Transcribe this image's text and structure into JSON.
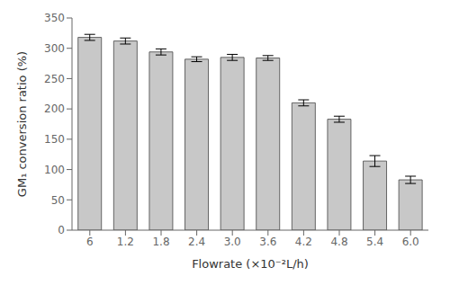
{
  "chart_data": {
    "type": "bar",
    "categories": [
      "6",
      "1.2",
      "1.8",
      "2.4",
      "3.0",
      "3.6",
      "4.2",
      "4.8",
      "5.4",
      "6.0"
    ],
    "values": [
      318,
      312,
      294,
      282,
      285,
      284,
      210,
      183,
      114,
      83
    ],
    "errors": [
      5,
      5,
      5,
      4,
      5,
      4,
      5,
      5,
      9,
      6
    ],
    "color": "#c8c8c8",
    "xlabel": "Flowrate (×10⁻²L/h)",
    "ylabel": "GM₁ conversion ratio (%)",
    "ylim": [
      0,
      350
    ],
    "yticks": [
      0,
      50,
      100,
      150,
      200,
      250,
      300,
      350
    ],
    "grid": false
  }
}
